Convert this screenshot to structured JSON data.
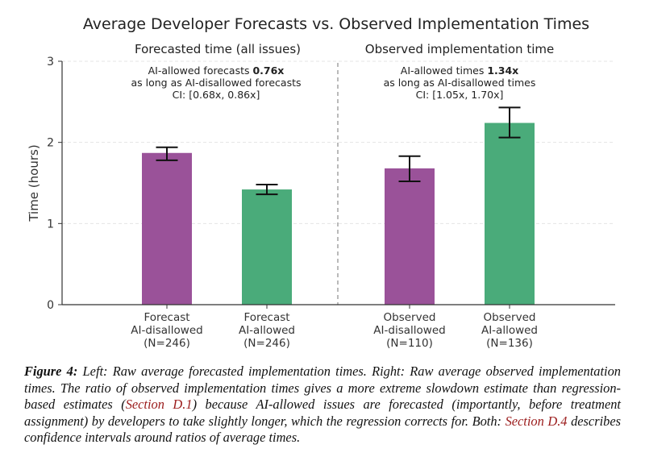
{
  "chart_data": {
    "type": "bar",
    "title": "Average Developer Forecasts vs. Observed Implementation Times",
    "ylabel": "Time (hours)",
    "xlabel": "",
    "ylim": [
      0,
      3
    ],
    "yticks": [
      "0",
      "1",
      "2",
      "3"
    ],
    "grid": "horizontal-dashed",
    "panels": [
      {
        "subtitle": "Forecasted time (all issues)",
        "annotation": {
          "line1_prefix": "AI-allowed forecasts ",
          "line1_bold": "0.76x",
          "line2": "as long as AI-disallowed forecasts",
          "line3": "CI: [0.68x, 0.86x]"
        }
      },
      {
        "subtitle": "Observed implementation time",
        "annotation": {
          "line1_prefix": "AI-allowed times ",
          "line1_bold": "1.34x",
          "line2": "as long as AI-disallowed times",
          "line3": "CI: [1.05x, 1.70x]"
        }
      }
    ],
    "categories": [
      [
        "Forecast",
        "AI-disallowed",
        "(N=246)"
      ],
      [
        "Forecast",
        "AI-allowed",
        "(N=246)"
      ],
      [
        "Observed",
        "AI-disallowed",
        "(N=110)"
      ],
      [
        "Observed",
        "AI-allowed",
        "(N=136)"
      ]
    ],
    "values": [
      1.87,
      1.42,
      1.68,
      2.24
    ],
    "error_low": [
      1.78,
      1.36,
      1.52,
      2.06
    ],
    "error_high": [
      1.94,
      1.48,
      1.83,
      2.43
    ],
    "bar_groups": [
      "AI-disallowed",
      "AI-allowed",
      "AI-disallowed",
      "AI-allowed"
    ],
    "colors": {
      "AI-disallowed": "#9a5299",
      "AI-allowed": "#4aab7a",
      "error_bar": "#111111",
      "divider": "#aaaaaa",
      "grid": "#e4e4e4"
    }
  },
  "caption": {
    "label": "Figure 4:",
    "text_1": " Left: Raw average forecasted implementation times. Right: Raw average observed implementation times. The ratio of observed implementation times gives a more extreme slowdown estimate than regression-based estimates (",
    "ref_1": "Section D.1",
    "text_2": ") because AI-allowed issues are forecasted (importantly, before treatment assignment) by developers to take slightly longer, which the regression corrects for. Both: ",
    "ref_2": "Section D.4",
    "text_3": " describes confidence intervals around ratios of average times."
  }
}
